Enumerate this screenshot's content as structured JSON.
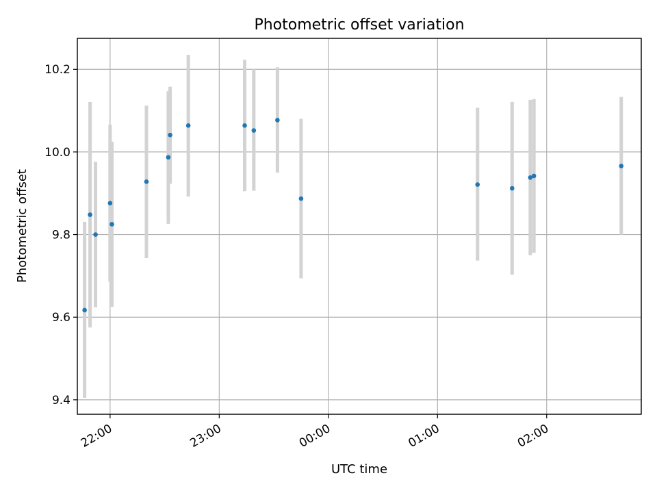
{
  "chart_data": {
    "type": "scatter",
    "title": "Photometric offset variation",
    "xlabel": "UTC time",
    "ylabel": "Photometric offset",
    "x_unit": "UTC clock time (hh:mm); times after midnight on the following day",
    "xlim": [
      "21:42",
      "02:52"
    ],
    "ylim": [
      9.365,
      10.275
    ],
    "xticks": [
      "22:00",
      "23:00",
      "00:00",
      "01:00",
      "02:00"
    ],
    "yticks": [
      9.4,
      9.6,
      9.8,
      10.0,
      10.2
    ],
    "ytick_labels": [
      "9.4",
      "9.6",
      "9.8",
      "10.0",
      "10.2"
    ],
    "grid": true,
    "legend": "none",
    "marker_color": "#1f77b4",
    "errorbar_color": "#d3d3d3",
    "points": [
      {
        "x": "21:46",
        "y": 9.617,
        "ylow": 9.405,
        "yhigh": 9.831
      },
      {
        "x": "21:49",
        "y": 9.848,
        "ylow": 9.575,
        "yhigh": 10.121
      },
      {
        "x": "21:52",
        "y": 9.8,
        "ylow": 9.624,
        "yhigh": 9.976
      },
      {
        "x": "22:00",
        "y": 9.876,
        "ylow": 9.686,
        "yhigh": 10.066
      },
      {
        "x": "22:01",
        "y": 9.825,
        "ylow": 9.625,
        "yhigh": 10.025
      },
      {
        "x": "22:20",
        "y": 9.928,
        "ylow": 9.743,
        "yhigh": 10.112
      },
      {
        "x": "22:32",
        "y": 9.987,
        "ylow": 9.826,
        "yhigh": 10.147
      },
      {
        "x": "22:33",
        "y": 10.041,
        "ylow": 9.923,
        "yhigh": 10.158
      },
      {
        "x": "22:43",
        "y": 10.064,
        "ylow": 9.892,
        "yhigh": 10.235
      },
      {
        "x": "23:14",
        "y": 10.064,
        "ylow": 9.905,
        "yhigh": 10.223
      },
      {
        "x": "23:19",
        "y": 10.052,
        "ylow": 9.906,
        "yhigh": 10.2
      },
      {
        "x": "23:32",
        "y": 10.077,
        "ylow": 9.95,
        "yhigh": 10.205
      },
      {
        "x": "23:45",
        "y": 9.887,
        "ylow": 9.694,
        "yhigh": 10.08
      },
      {
        "x": "01:22",
        "y": 9.921,
        "ylow": 9.737,
        "yhigh": 10.107
      },
      {
        "x": "01:41",
        "y": 9.912,
        "ylow": 9.703,
        "yhigh": 10.121
      },
      {
        "x": "01:51",
        "y": 9.938,
        "ylow": 9.75,
        "yhigh": 10.126
      },
      {
        "x": "01:53",
        "y": 9.942,
        "ylow": 9.756,
        "yhigh": 10.128
      },
      {
        "x": "02:41",
        "y": 9.966,
        "ylow": 9.8,
        "yhigh": 10.133
      }
    ]
  }
}
